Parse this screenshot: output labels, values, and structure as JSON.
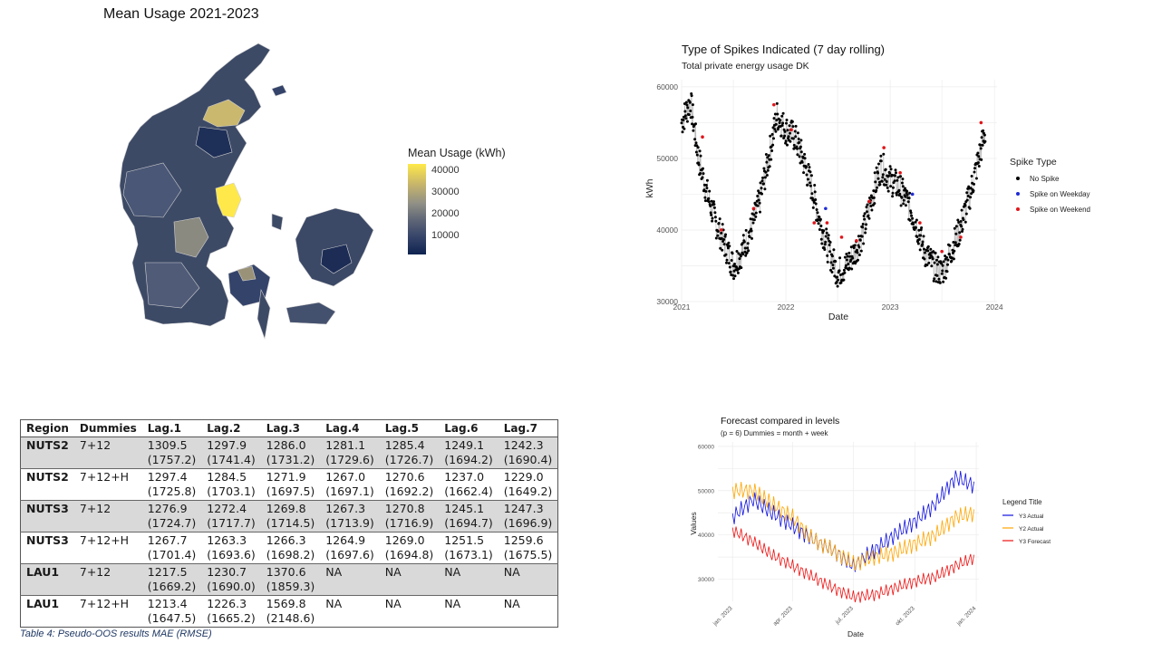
{
  "map": {
    "title": "Mean Usage 2021-2023",
    "legend_title": "Mean Usage (kWh)",
    "legend_ticks": [
      "40000",
      "30000",
      "20000",
      "10000"
    ],
    "colors": {
      "low": "#0e2350",
      "mid": "#5f6676",
      "high": "#ffe94a"
    }
  },
  "chart_data": [
    {
      "type": "scatter",
      "title": "Type of Spikes Indicated (7 day rolling)",
      "subtitle": "Total private energy usage DK",
      "xlabel": "Date",
      "ylabel": "kWh",
      "x_ticks": [
        "2021",
        "2022",
        "2023",
        "2024"
      ],
      "y_ticks": [
        "30000",
        "40000",
        "50000",
        "60000"
      ],
      "ylim": [
        30000,
        61000
      ],
      "xlim": [
        "2021-01-01",
        "2024-01-10"
      ],
      "grid": true,
      "legend_title": "Spike Type",
      "legend_position": "right",
      "series": [
        {
          "name": "No Spike",
          "color": "#000000"
        },
        {
          "name": "Spike on Weekday",
          "color": "#1f2bd6"
        },
        {
          "name": "Spike on Weekend",
          "color": "#e0161b"
        }
      ],
      "trend_points": [
        [
          "2021-01-01",
          55000
        ],
        [
          "2021-02-01",
          58000
        ],
        [
          "2021-03-01",
          50000
        ],
        [
          "2021-04-01",
          45000
        ],
        [
          "2021-05-01",
          41000
        ],
        [
          "2021-06-01",
          38000
        ],
        [
          "2021-07-01",
          35000
        ],
        [
          "2021-08-01",
          37000
        ],
        [
          "2021-09-01",
          40000
        ],
        [
          "2021-10-01",
          44000
        ],
        [
          "2021-11-01",
          50000
        ],
        [
          "2021-12-01",
          56000
        ],
        [
          "2022-01-01",
          54000
        ],
        [
          "2022-02-01",
          53000
        ],
        [
          "2022-03-01",
          50000
        ],
        [
          "2022-04-01",
          46000
        ],
        [
          "2022-05-01",
          41000
        ],
        [
          "2022-06-01",
          37000
        ],
        [
          "2022-07-01",
          34000
        ],
        [
          "2022-08-01",
          35000
        ],
        [
          "2022-09-01",
          37000
        ],
        [
          "2022-10-01",
          40000
        ],
        [
          "2022-11-01",
          45000
        ],
        [
          "2022-12-01",
          49000
        ],
        [
          "2023-01-01",
          47000
        ],
        [
          "2023-02-01",
          46000
        ],
        [
          "2023-03-01",
          44000
        ],
        [
          "2023-04-01",
          41000
        ],
        [
          "2023-05-01",
          37000
        ],
        [
          "2023-06-01",
          35000
        ],
        [
          "2023-07-01",
          34000
        ],
        [
          "2023-08-01",
          37000
        ],
        [
          "2023-09-01",
          40000
        ],
        [
          "2023-10-01",
          44000
        ],
        [
          "2023-11-01",
          49000
        ],
        [
          "2023-12-01",
          54000
        ]
      ],
      "weekend_spikes": [
        [
          "2021-03-15",
          53000
        ],
        [
          "2021-05-20",
          40000
        ],
        [
          "2021-09-10",
          43000
        ],
        [
          "2021-11-20",
          57500
        ],
        [
          "2022-01-20",
          54000
        ],
        [
          "2022-04-10",
          41000
        ],
        [
          "2022-05-25",
          41000
        ],
        [
          "2022-07-15",
          39000
        ],
        [
          "2022-09-05",
          38500
        ],
        [
          "2022-10-20",
          44000
        ],
        [
          "2022-12-10",
          51500
        ],
        [
          "2023-02-05",
          48000
        ],
        [
          "2023-04-15",
          41000
        ],
        [
          "2023-07-01",
          37000
        ],
        [
          "2023-09-05",
          39000
        ],
        [
          "2023-11-15",
          55000
        ]
      ],
      "weekday_spikes": [
        [
          "2022-05-20",
          43000
        ],
        [
          "2023-03-20",
          45000
        ]
      ]
    },
    {
      "type": "line",
      "title": "Forecast compared in levels",
      "subtitle": "(p = 6) Dummies = month + week",
      "xlabel": "Date",
      "ylabel": "Values",
      "x_ticks": [
        "jan. 2023",
        "apr. 2023",
        "jul. 2023",
        "okt. 2023",
        "jan. 2024"
      ],
      "y_ticks": [
        "30000",
        "40000",
        "50000",
        "60000"
      ],
      "ylim": [
        25000,
        61000
      ],
      "grid": true,
      "legend_title": "Legend Title",
      "legend_position": "right",
      "series": [
        {
          "name": "Y3 Actual",
          "color": "#1010e0",
          "points": [
            [
              "2023-01-01",
              44000
            ],
            [
              "2023-02-01",
              48000
            ],
            [
              "2023-03-01",
              45000
            ],
            [
              "2023-04-01",
              42000
            ],
            [
              "2023-05-01",
              39000
            ],
            [
              "2023-06-01",
              36500
            ],
            [
              "2023-07-01",
              33000
            ],
            [
              "2023-08-01",
              36500
            ],
            [
              "2023-09-01",
              40000
            ],
            [
              "2023-10-01",
              43000
            ],
            [
              "2023-11-01",
              47000
            ],
            [
              "2023-12-01",
              53000
            ],
            [
              "2023-12-31",
              51000
            ]
          ]
        },
        {
          "name": "Y2 Actual",
          "color": "#ffa500",
          "points": [
            [
              "2023-01-01",
              50000
            ],
            [
              "2023-02-01",
              50000
            ],
            [
              "2023-03-01",
              47000
            ],
            [
              "2023-04-01",
              44000
            ],
            [
              "2023-05-01",
              39000
            ],
            [
              "2023-06-01",
              36500
            ],
            [
              "2023-07-01",
              33500
            ],
            [
              "2023-08-01",
              35000
            ],
            [
              "2023-09-01",
              36000
            ],
            [
              "2023-10-01",
              38000
            ],
            [
              "2023-11-01",
              40000
            ],
            [
              "2023-12-01",
              44000
            ],
            [
              "2023-12-31",
              45000
            ]
          ]
        },
        {
          "name": "Y3 Forecast",
          "color": "#ee1111",
          "points": [
            [
              "2023-01-01",
              41000
            ],
            [
              "2023-02-01",
              38500
            ],
            [
              "2023-03-01",
              35500
            ],
            [
              "2023-04-01",
              33000
            ],
            [
              "2023-05-01",
              30500
            ],
            [
              "2023-06-01",
              28000
            ],
            [
              "2023-07-01",
              26000
            ],
            [
              "2023-08-01",
              26500
            ],
            [
              "2023-09-01",
              28000
            ],
            [
              "2023-10-01",
              29500
            ],
            [
              "2023-11-01",
              30500
            ],
            [
              "2023-12-01",
              33000
            ],
            [
              "2023-12-31",
              35000
            ]
          ]
        }
      ]
    }
  ],
  "table": {
    "headers": [
      "Region",
      "Dummies",
      "Lag.1",
      "Lag.2",
      "Lag.3",
      "Lag.4",
      "Lag.5",
      "Lag.6",
      "Lag.7"
    ],
    "rows": [
      {
        "region": "NUTS2",
        "dummies": "7+12",
        "shaded": true,
        "lags": [
          [
            "1309.5",
            "(1757.2)"
          ],
          [
            "1297.9",
            "(1741.4)"
          ],
          [
            "1286.0",
            "(1731.2)"
          ],
          [
            "1281.1",
            "(1729.6)"
          ],
          [
            "1285.4",
            "(1726.7)"
          ],
          [
            "1249.1",
            "(1694.2)"
          ],
          [
            "1242.3",
            "(1690.4)"
          ]
        ]
      },
      {
        "region": "NUTS2",
        "dummies": "7+12+H",
        "shaded": false,
        "lags": [
          [
            "1297.4",
            "(1725.8)"
          ],
          [
            "1284.5",
            "(1703.1)"
          ],
          [
            "1271.9",
            "(1697.5)"
          ],
          [
            "1267.0",
            "(1697.1)"
          ],
          [
            "1270.6",
            "(1692.2)"
          ],
          [
            "1237.0",
            "(1662.4)"
          ],
          [
            "1229.0",
            "(1649.2)"
          ]
        ]
      },
      {
        "region": "NUTS3",
        "dummies": "7+12",
        "shaded": true,
        "lags": [
          [
            "1276.9",
            "(1724.7)"
          ],
          [
            "1272.4",
            "(1717.7)"
          ],
          [
            "1269.8",
            "(1714.5)"
          ],
          [
            "1267.3",
            "(1713.9)"
          ],
          [
            "1270.8",
            "(1716.9)"
          ],
          [
            "1245.1",
            "(1694.7)"
          ],
          [
            "1247.3",
            "(1696.9)"
          ]
        ]
      },
      {
        "region": "NUTS3",
        "dummies": "7+12+H",
        "shaded": false,
        "lags": [
          [
            "1267.7",
            "(1701.4)"
          ],
          [
            "1263.3",
            "(1693.6)"
          ],
          [
            "1266.3",
            "(1698.2)"
          ],
          [
            "1264.9",
            "(1697.6)"
          ],
          [
            "1269.0",
            "(1694.8)"
          ],
          [
            "1251.5",
            "(1673.1)"
          ],
          [
            "1259.6",
            "(1675.5)"
          ]
        ]
      },
      {
        "region": "LAU1",
        "dummies": "7+12",
        "shaded": true,
        "lags": [
          [
            "1217.5",
            "(1669.2)"
          ],
          [
            "1230.7",
            "(1690.0)"
          ],
          [
            "1370.6",
            "(1859.3)"
          ],
          [
            "NA",
            ""
          ],
          [
            "NA",
            ""
          ],
          [
            "NA",
            ""
          ],
          [
            "NA",
            ""
          ]
        ]
      },
      {
        "region": "LAU1",
        "dummies": "7+12+H",
        "shaded": false,
        "lags": [
          [
            "1213.4",
            "(1647.5)"
          ],
          [
            "1226.3",
            "(1665.2)"
          ],
          [
            "1569.8",
            "(2148.6)"
          ],
          [
            "NA",
            ""
          ],
          [
            "NA",
            ""
          ],
          [
            "NA",
            ""
          ],
          [
            "NA",
            ""
          ]
        ]
      }
    ],
    "caption": "Table 4: Pseudo-OOS results MAE (RMSE)"
  }
}
